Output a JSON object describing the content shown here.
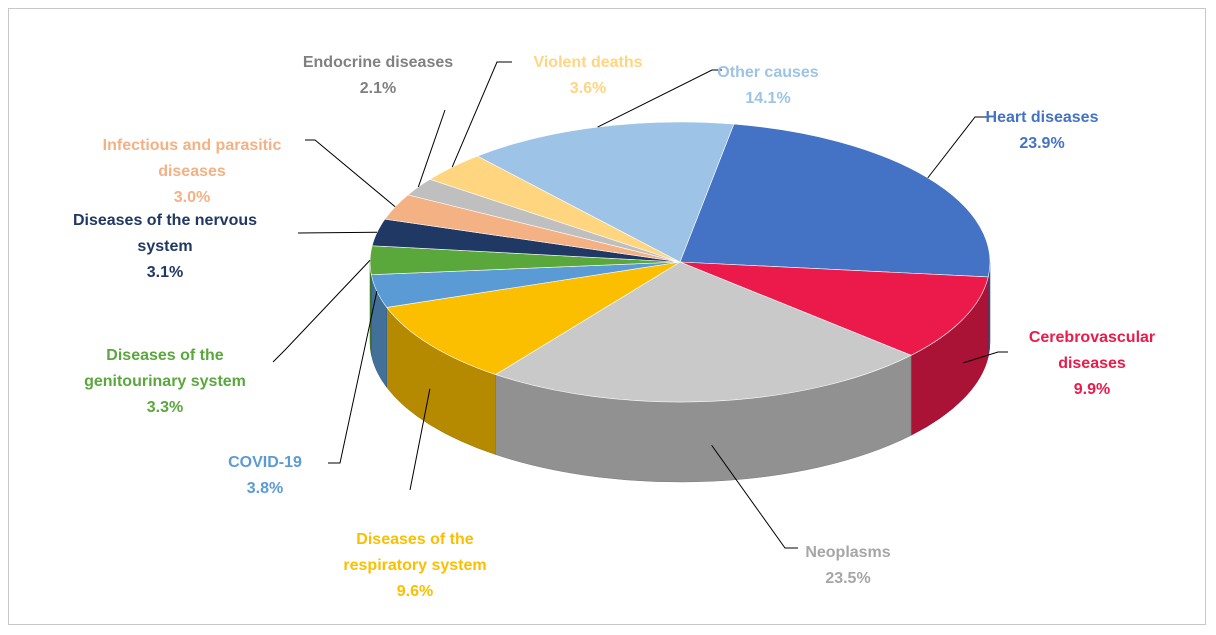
{
  "chart_data": {
    "type": "pie3d",
    "categories": [
      "Heart diseases",
      "Cerebrovascular diseases",
      "Neoplasms",
      "Diseases of the respiratory system",
      "COVID-19",
      "Diseases of the genitourinary system",
      "Diseases of the nervous system",
      "Infectious and parasitic diseases",
      "Endocrine diseases",
      "Violent deaths",
      "Other causes"
    ],
    "values": [
      23.9,
      9.9,
      23.5,
      9.6,
      3.8,
      3.3,
      3.1,
      3.0,
      2.1,
      3.6,
      14.1
    ],
    "value_labels": [
      "23.9%",
      "9.9%",
      "23.5%",
      "9.6%",
      "3.8%",
      "3.3%",
      "3.1%",
      "3.0%",
      "2.1%",
      "3.6%",
      "14.1%"
    ],
    "colors": [
      "#4472c4",
      "#ec1a4b",
      "#c9c9c9",
      "#fbbf00",
      "#5b9bd5",
      "#5aa83c",
      "#203864",
      "#f4b183",
      "#bfbfbf",
      "#ffd580",
      "#9dc3e6"
    ],
    "label_colors": [
      "#4472c4",
      "#ec1a4b",
      "#a6a6a6",
      "#fbbf00",
      "#5b9bd5",
      "#5aa83c",
      "#203864",
      "#f4b183",
      "#808080",
      "#ffd580",
      "#9dc3e6"
    ]
  }
}
